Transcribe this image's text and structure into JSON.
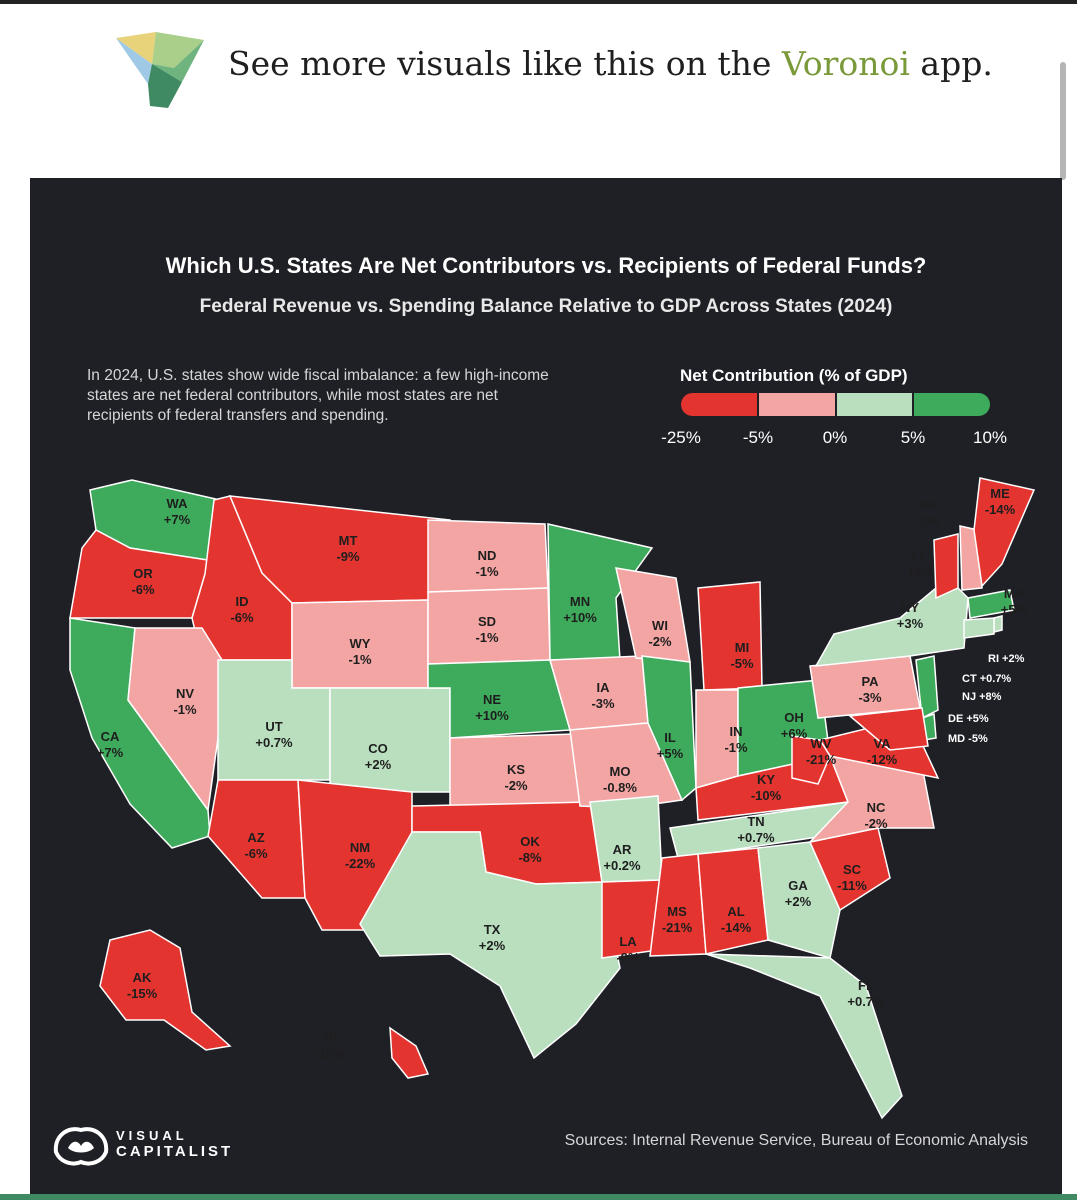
{
  "banner": {
    "text_prefix": "See more visuals like this on the ",
    "text_accent": "Voronoi",
    "text_suffix": " app."
  },
  "header": {
    "title": "Which U.S. States Are Net Contributors vs. Recipients of Federal Funds?",
    "subtitle": "Federal Revenue vs. Spending Balance Relative to GDP Across States (2024)"
  },
  "intro": "In 2024, U.S. states show wide fiscal imbalance: a few high-income states are net federal contributors, while most states are net recipients of federal transfers and spending.",
  "legend": {
    "title": "Net Contribution (% of GDP)",
    "ticks": [
      "-25%",
      "-5%",
      "0%",
      "5%",
      "10%"
    ],
    "colors": [
      "#e3342f",
      "#f2a5a3",
      "#b9dfbf",
      "#3eaa5b"
    ]
  },
  "chart_data": {
    "type": "choropleth",
    "title": "Which U.S. States Are Net Contributors vs. Recipients of Federal Funds?",
    "subtitle": "Federal Revenue vs. Spending Balance Relative to GDP Across States (2024)",
    "legend_title": "Net Contribution (% of GDP)",
    "bins": [
      "-25%",
      "-5%",
      "0%",
      "5%",
      "10%"
    ],
    "states": [
      {
        "code": "WA",
        "label": "+7%",
        "value": 7
      },
      {
        "code": "OR",
        "label": "-6%",
        "value": -6
      },
      {
        "code": "CA",
        "label": "+7%",
        "value": 7
      },
      {
        "code": "ID",
        "label": "-6%",
        "value": -6
      },
      {
        "code": "NV",
        "label": "-1%",
        "value": -1
      },
      {
        "code": "MT",
        "label": "-9%",
        "value": -9
      },
      {
        "code": "WY",
        "label": "-1%",
        "value": -1
      },
      {
        "code": "UT",
        "label": "+0.7%",
        "value": 0.7
      },
      {
        "code": "AZ",
        "label": "-6%",
        "value": -6
      },
      {
        "code": "CO",
        "label": "+2%",
        "value": 2
      },
      {
        "code": "NM",
        "label": "-22%",
        "value": -22
      },
      {
        "code": "ND",
        "label": "-1%",
        "value": -1
      },
      {
        "code": "SD",
        "label": "-1%",
        "value": -1
      },
      {
        "code": "NE",
        "label": "+10%",
        "value": 10
      },
      {
        "code": "KS",
        "label": "-2%",
        "value": -2
      },
      {
        "code": "OK",
        "label": "-8%",
        "value": -8
      },
      {
        "code": "TX",
        "label": "+2%",
        "value": 2
      },
      {
        "code": "MN",
        "label": "+10%",
        "value": 10
      },
      {
        "code": "IA",
        "label": "-3%",
        "value": -3
      },
      {
        "code": "MO",
        "label": "-0.8%",
        "value": -0.8
      },
      {
        "code": "AR",
        "label": "+0.2%",
        "value": 0.2
      },
      {
        "code": "LA",
        "label": "-9%",
        "value": -9
      },
      {
        "code": "WI",
        "label": "-2%",
        "value": -2
      },
      {
        "code": "IL",
        "label": "+5%",
        "value": 5
      },
      {
        "code": "MI",
        "label": "-5%",
        "value": -5
      },
      {
        "code": "IN",
        "label": "-1%",
        "value": -1
      },
      {
        "code": "OH",
        "label": "+6%",
        "value": 6
      },
      {
        "code": "KY",
        "label": "-10%",
        "value": -10
      },
      {
        "code": "TN",
        "label": "+0.7%",
        "value": 0.7
      },
      {
        "code": "MS",
        "label": "-21%",
        "value": -21
      },
      {
        "code": "AL",
        "label": "-14%",
        "value": -14
      },
      {
        "code": "GA",
        "label": "+2%",
        "value": 2
      },
      {
        "code": "FL",
        "label": "+0.7%",
        "value": 0.7
      },
      {
        "code": "SC",
        "label": "-11%",
        "value": -11
      },
      {
        "code": "NC",
        "label": "-2%",
        "value": -2
      },
      {
        "code": "VA",
        "label": "-12%",
        "value": -12
      },
      {
        "code": "WV",
        "label": "-21%",
        "value": -21
      },
      {
        "code": "PA",
        "label": "-3%",
        "value": -3
      },
      {
        "code": "NY",
        "label": "+3%",
        "value": 3
      },
      {
        "code": "VT",
        "label": "-10%",
        "value": -10
      },
      {
        "code": "NH",
        "label": "-3%",
        "value": -3
      },
      {
        "code": "ME",
        "label": "-14%",
        "value": -14
      },
      {
        "code": "MA",
        "label": "+5%",
        "value": 5
      },
      {
        "code": "RI",
        "label": "+2%",
        "value": 2
      },
      {
        "code": "CT",
        "label": "+0.7%",
        "value": 0.7
      },
      {
        "code": "NJ",
        "label": "+8%",
        "value": 8
      },
      {
        "code": "DE",
        "label": "+5%",
        "value": 5
      },
      {
        "code": "MD",
        "label": "-5%",
        "value": -5
      },
      {
        "code": "AK",
        "label": "-15%",
        "value": -15
      },
      {
        "code": "HI",
        "label": "-12%",
        "value": -12
      }
    ]
  },
  "footer": {
    "brand_line1": "VISUAL",
    "brand_line2": "CAPITALIST",
    "sources": "Sources: Internal Revenue Service, Bureau of Economic Analysis"
  }
}
